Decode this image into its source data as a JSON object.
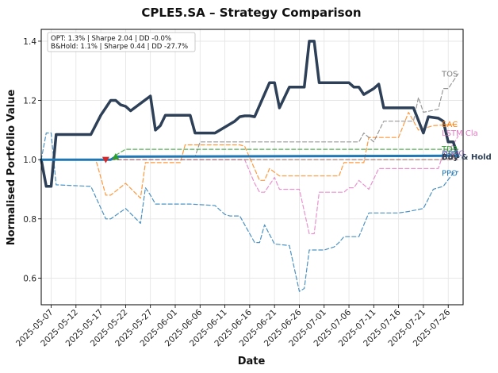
{
  "chart_data": {
    "type": "line",
    "title": "CPLE5.SA – Strategy Comparison",
    "xlabel": "Date",
    "ylabel": "Normalised Portfolio Value",
    "ylim": [
      0.51,
      1.44
    ],
    "xlim": [
      "2025-05-05",
      "2025-07-29"
    ],
    "grid": true,
    "x_ticks": [
      "2025-05-07",
      "2025-05-12",
      "2025-05-17",
      "2025-05-22",
      "2025-05-27",
      "2025-06-01",
      "2025-06-06",
      "2025-06-11",
      "2025-06-16",
      "2025-06-21",
      "2025-06-26",
      "2025-07-01",
      "2025-07-06",
      "2025-07-11",
      "2025-07-16",
      "2025-07-21",
      "2025-07-26"
    ],
    "y_ticks": [
      0.6,
      0.8,
      1.0,
      1.2,
      1.4
    ],
    "y_tick_labels": [
      "0.6",
      "0.8",
      "1.0",
      "1.2",
      "1.4"
    ],
    "stats_box": {
      "line1": "OPT: 1.3% | Sharpe 2.04 | DD -0.0%",
      "line2": "B&Hold: 1.1% | Sharpe 0.44 | DD -27.7%"
    },
    "markers": [
      {
        "type": "sell",
        "x": "2025-05-18",
        "y": 1.0,
        "color": "#d62728"
      },
      {
        "type": "buy",
        "x": "2025-05-20",
        "y": 1.01,
        "color": "#2ca02c"
      }
    ],
    "series": [
      {
        "name": "Buy & Hold",
        "color": "#2e4057",
        "width": 3.5,
        "dash": "none",
        "points": [
          [
            "2025-05-05",
            1.0
          ],
          [
            "2025-05-06",
            0.91
          ],
          [
            "2025-05-07",
            0.91
          ],
          [
            "2025-05-08",
            1.085
          ],
          [
            "2025-05-12",
            1.085
          ],
          [
            "2025-05-15",
            1.085
          ],
          [
            "2025-05-17",
            1.15
          ],
          [
            "2025-05-19",
            1.2
          ],
          [
            "2025-05-20",
            1.2
          ],
          [
            "2025-05-21",
            1.185
          ],
          [
            "2025-05-22",
            1.18
          ],
          [
            "2025-05-23",
            1.165
          ],
          [
            "2025-05-27",
            1.215
          ],
          [
            "2025-05-28",
            1.1
          ],
          [
            "2025-05-29",
            1.115
          ],
          [
            "2025-05-30",
            1.15
          ],
          [
            "2025-06-04",
            1.15
          ],
          [
            "2025-06-05",
            1.09
          ],
          [
            "2025-06-09",
            1.09
          ],
          [
            "2025-06-13",
            1.13
          ],
          [
            "2025-06-14",
            1.145
          ],
          [
            "2025-06-15",
            1.148
          ],
          [
            "2025-06-16",
            1.148
          ],
          [
            "2025-06-17",
            1.145
          ],
          [
            "2025-06-20",
            1.26
          ],
          [
            "2025-06-21",
            1.26
          ],
          [
            "2025-06-22",
            1.175
          ],
          [
            "2025-06-24",
            1.245
          ],
          [
            "2025-06-27",
            1.245
          ],
          [
            "2025-06-28",
            1.4
          ],
          [
            "2025-06-29",
            1.4
          ],
          [
            "2025-06-30",
            1.26
          ],
          [
            "2025-07-06",
            1.26
          ],
          [
            "2025-07-07",
            1.245
          ],
          [
            "2025-07-08",
            1.245
          ],
          [
            "2025-07-09",
            1.22
          ],
          [
            "2025-07-11",
            1.24
          ],
          [
            "2025-07-12",
            1.255
          ],
          [
            "2025-07-13",
            1.175
          ],
          [
            "2025-07-19",
            1.175
          ],
          [
            "2025-07-21",
            1.09
          ],
          [
            "2025-07-22",
            1.145
          ],
          [
            "2025-07-24",
            1.14
          ],
          [
            "2025-07-25",
            1.13
          ],
          [
            "2025-07-26",
            1.06
          ],
          [
            "2025-07-27",
            1.06
          ],
          [
            "2025-07-28",
            1.01
          ]
        ]
      },
      {
        "name": "TOS",
        "color": "#7f7f7f",
        "width": 1.2,
        "dash": "5,3",
        "points": [
          [
            "2025-05-05",
            1.0
          ],
          [
            "2025-05-19",
            1.0
          ],
          [
            "2025-05-20",
            1.01
          ],
          [
            "2025-06-05",
            1.01
          ],
          [
            "2025-06-06",
            1.06
          ],
          [
            "2025-07-08",
            1.06
          ],
          [
            "2025-07-09",
            1.09
          ],
          [
            "2025-07-11",
            1.06
          ],
          [
            "2025-07-13",
            1.13
          ],
          [
            "2025-07-19",
            1.13
          ],
          [
            "2025-07-20",
            1.21
          ],
          [
            "2025-07-21",
            1.16
          ],
          [
            "2025-07-24",
            1.17
          ],
          [
            "2025-07-25",
            1.24
          ],
          [
            "2025-07-26",
            1.24
          ],
          [
            "2025-07-28",
            1.29
          ]
        ]
      },
      {
        "name": "SAC",
        "color": "#ff7f0e",
        "width": 1.2,
        "dash": "5,3",
        "points": [
          [
            "2025-05-05",
            1.0
          ],
          [
            "2025-05-16",
            1.0
          ],
          [
            "2025-05-18",
            0.88
          ],
          [
            "2025-05-19",
            0.88
          ],
          [
            "2025-05-22",
            0.92
          ],
          [
            "2025-05-25",
            0.87
          ],
          [
            "2025-05-26",
            0.99
          ],
          [
            "2025-06-02",
            0.99
          ],
          [
            "2025-06-03",
            1.05
          ],
          [
            "2025-06-14",
            1.05
          ],
          [
            "2025-06-15",
            1.045
          ],
          [
            "2025-06-18",
            0.93
          ],
          [
            "2025-06-19",
            0.93
          ],
          [
            "2025-06-20",
            0.97
          ],
          [
            "2025-06-22",
            0.945
          ],
          [
            "2025-07-04",
            0.945
          ],
          [
            "2025-07-05",
            0.99
          ],
          [
            "2025-07-09",
            0.99
          ],
          [
            "2025-07-10",
            1.075
          ],
          [
            "2025-07-16",
            1.075
          ],
          [
            "2025-07-18",
            1.16
          ],
          [
            "2025-07-20",
            1.1
          ],
          [
            "2025-07-23",
            1.115
          ],
          [
            "2025-07-28",
            1.12
          ]
        ]
      },
      {
        "name": "LSTM Cla",
        "color": "#e377c2",
        "width": 1.2,
        "dash": "5,3",
        "points": [
          [
            "2025-05-05",
            1.0
          ],
          [
            "2025-06-15",
            1.0
          ],
          [
            "2025-06-17",
            0.92
          ],
          [
            "2025-06-18",
            0.89
          ],
          [
            "2025-06-19",
            0.89
          ],
          [
            "2025-06-21",
            0.94
          ],
          [
            "2025-06-22",
            0.9
          ],
          [
            "2025-06-26",
            0.9
          ],
          [
            "2025-06-28",
            0.75
          ],
          [
            "2025-06-29",
            0.75
          ],
          [
            "2025-06-30",
            0.89
          ],
          [
            "2025-07-05",
            0.89
          ],
          [
            "2025-07-06",
            0.905
          ],
          [
            "2025-07-07",
            0.905
          ],
          [
            "2025-07-08",
            0.93
          ],
          [
            "2025-07-10",
            0.9
          ],
          [
            "2025-07-12",
            0.97
          ],
          [
            "2025-07-24",
            0.97
          ],
          [
            "2025-07-25",
            1.02
          ],
          [
            "2025-07-27",
            1.05
          ],
          [
            "2025-07-28",
            1.08
          ]
        ]
      },
      {
        "name": "TD3",
        "color": "#2ca02c",
        "width": 1.2,
        "dash": "5,3",
        "points": [
          [
            "2025-05-05",
            1.0
          ],
          [
            "2025-05-19",
            1.0
          ],
          [
            "2025-05-20",
            1.015
          ],
          [
            "2025-05-22",
            1.035
          ],
          [
            "2025-07-28",
            1.035
          ]
        ]
      },
      {
        "name": "DDPG",
        "color": "#9467bd",
        "width": 1.2,
        "dash": "5,3",
        "points": [
          [
            "2025-05-05",
            1.0
          ],
          [
            "2025-05-19",
            1.0
          ],
          [
            "2025-05-20",
            1.012
          ],
          [
            "2025-07-28",
            1.012
          ]
        ]
      },
      {
        "name": "A2C",
        "color": "#8c564b",
        "width": 1.2,
        "dash": "5,3",
        "points": [
          [
            "2025-05-05",
            1.0
          ],
          [
            "2025-07-28",
            1.0
          ]
        ]
      },
      {
        "name": "PPO",
        "color": "#1f77b4",
        "width": 1.2,
        "dash": "5,3",
        "points": [
          [
            "2025-05-05",
            1.0
          ],
          [
            "2025-05-06",
            1.09
          ],
          [
            "2025-05-07",
            1.09
          ],
          [
            "2025-05-08",
            0.915
          ],
          [
            "2025-05-15",
            0.91
          ],
          [
            "2025-05-18",
            0.8
          ],
          [
            "2025-05-19",
            0.8
          ],
          [
            "2025-05-22",
            0.835
          ],
          [
            "2025-05-25",
            0.785
          ],
          [
            "2025-05-26",
            0.905
          ],
          [
            "2025-05-27",
            0.88
          ],
          [
            "2025-05-28",
            0.85
          ],
          [
            "2025-06-04",
            0.85
          ],
          [
            "2025-06-09",
            0.845
          ],
          [
            "2025-06-11",
            0.815
          ],
          [
            "2025-06-12",
            0.81
          ],
          [
            "2025-06-14",
            0.81
          ],
          [
            "2025-06-17",
            0.72
          ],
          [
            "2025-06-18",
            0.72
          ],
          [
            "2025-06-19",
            0.78
          ],
          [
            "2025-06-21",
            0.715
          ],
          [
            "2025-06-24",
            0.71
          ],
          [
            "2025-06-26",
            0.555
          ],
          [
            "2025-06-27",
            0.565
          ],
          [
            "2025-06-28",
            0.695
          ],
          [
            "2025-07-01",
            0.695
          ],
          [
            "2025-07-03",
            0.705
          ],
          [
            "2025-07-04",
            0.72
          ],
          [
            "2025-07-05",
            0.74
          ],
          [
            "2025-07-08",
            0.74
          ],
          [
            "2025-07-09",
            0.78
          ],
          [
            "2025-07-10",
            0.82
          ],
          [
            "2025-07-16",
            0.82
          ],
          [
            "2025-07-18",
            0.825
          ],
          [
            "2025-07-21",
            0.835
          ],
          [
            "2025-07-23",
            0.9
          ],
          [
            "2025-07-25",
            0.91
          ],
          [
            "2025-07-27",
            0.955
          ],
          [
            "2025-07-28",
            0.96
          ]
        ]
      },
      {
        "name": "OPT",
        "color": "#1f77b4",
        "width": 3.0,
        "dash": "none",
        "points": [
          [
            "2025-05-05",
            1.0
          ],
          [
            "2025-05-19",
            1.0
          ],
          [
            "2025-05-20",
            1.01
          ],
          [
            "2025-07-28",
            1.013
          ]
        ]
      }
    ],
    "end_labels": [
      {
        "text": "TOS",
        "y": 1.29,
        "color": "#7f7f7f",
        "bold": false
      },
      {
        "text": "SAC",
        "y": 1.12,
        "color": "#ff7f0e",
        "bold": false
      },
      {
        "text": "LSTM Cla",
        "y": 1.09,
        "color": "#e377c2",
        "bold": false
      },
      {
        "text": "TD3",
        "y": 1.037,
        "color": "#2ca02c",
        "bold": false
      },
      {
        "text": "DDPG",
        "y": 1.022,
        "color": "#9467bd",
        "bold": false
      },
      {
        "text": "A2C",
        "y": 1.013,
        "color": "#8c564b",
        "bold": false
      },
      {
        "text": "OPT",
        "y": 1.018,
        "color": "#1f77b4",
        "bold": false
      },
      {
        "text": "Buy & Hold",
        "y": 1.01,
        "color": "#2e4057",
        "bold": true
      },
      {
        "text": "PPO",
        "y": 0.955,
        "color": "#1f77b4",
        "bold": false
      }
    ]
  }
}
